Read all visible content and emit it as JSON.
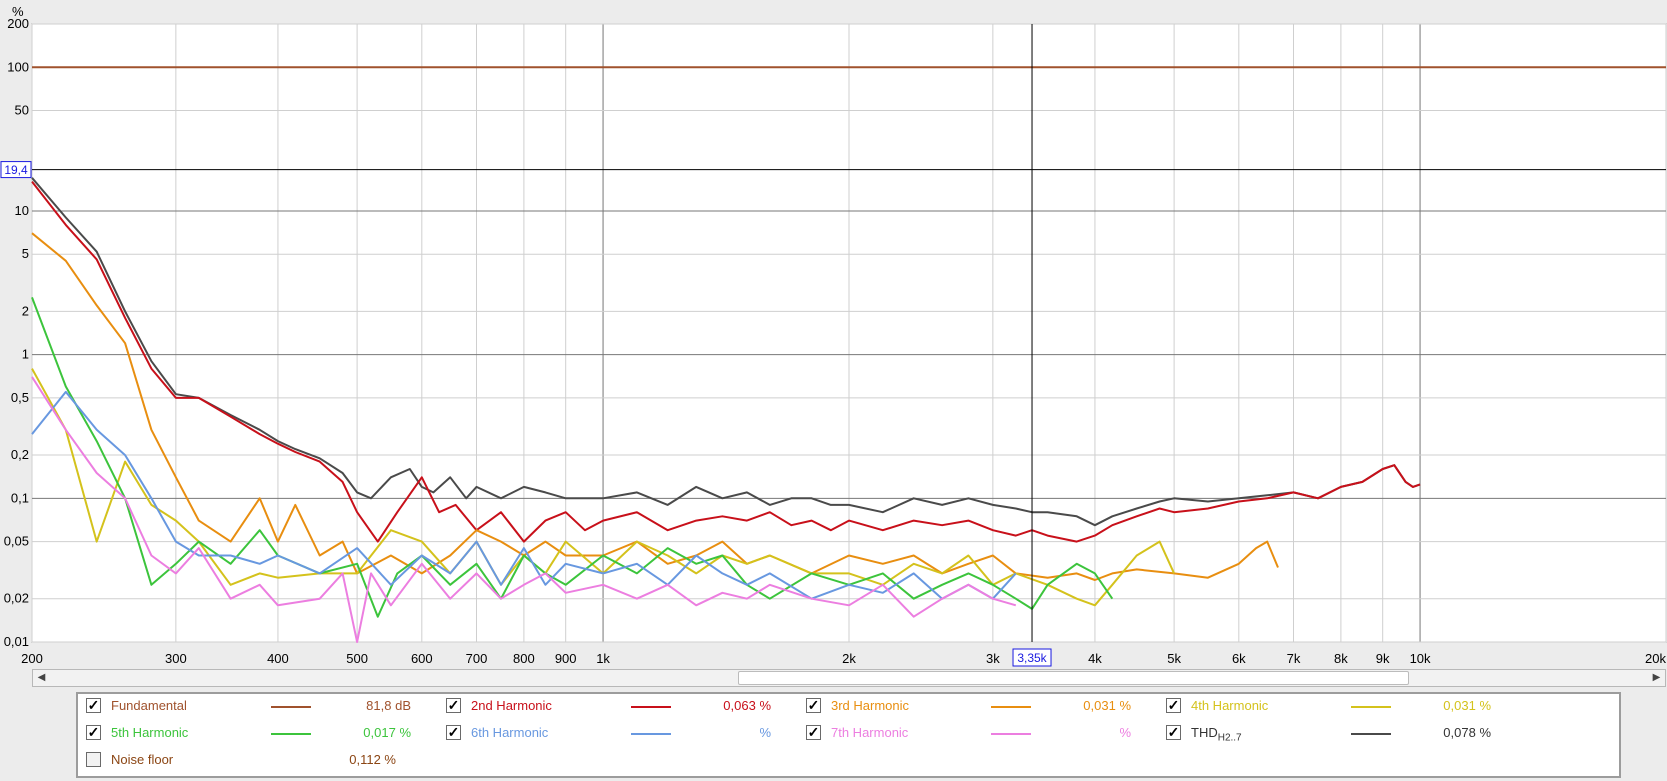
{
  "chart_data": {
    "type": "line",
    "ylabel": "%",
    "x_scale": "log",
    "y_scale": "log",
    "xlim": [
      200,
      20000
    ],
    "ylim": [
      0.01,
      200
    ],
    "x_ticks": [
      {
        "v": 200,
        "t": "200"
      },
      {
        "v": 300,
        "t": "300"
      },
      {
        "v": 400,
        "t": "400"
      },
      {
        "v": 500,
        "t": "500"
      },
      {
        "v": 600,
        "t": "600"
      },
      {
        "v": 700,
        "t": "700"
      },
      {
        "v": 800,
        "t": "800"
      },
      {
        "v": 900,
        "t": "900"
      },
      {
        "v": 1000,
        "t": "1k"
      },
      {
        "v": 2000,
        "t": "2k"
      },
      {
        "v": 3000,
        "t": "3k"
      },
      {
        "v": 4000,
        "t": "4k"
      },
      {
        "v": 5000,
        "t": "5k"
      },
      {
        "v": 6000,
        "t": "6k"
      },
      {
        "v": 7000,
        "t": "7k"
      },
      {
        "v": 8000,
        "t": "8k"
      },
      {
        "v": 9000,
        "t": "9k"
      },
      {
        "v": 10000,
        "t": "10k"
      },
      {
        "v": 20000,
        "t": "20k"
      }
    ],
    "y_ticks": [
      {
        "v": 200,
        "t": "200"
      },
      {
        "v": 100,
        "t": "100"
      },
      {
        "v": 50,
        "t": "50"
      },
      {
        "v": 10,
        "t": "10"
      },
      {
        "v": 5,
        "t": "5"
      },
      {
        "v": 2,
        "t": "2"
      },
      {
        "v": 1,
        "t": "1"
      },
      {
        "v": 0.5,
        "t": "0,5"
      },
      {
        "v": 0.2,
        "t": "0,2"
      },
      {
        "v": 0.1,
        "t": "0,1"
      },
      {
        "v": 0.05,
        "t": "0,05"
      },
      {
        "v": 0.02,
        "t": "0,02"
      },
      {
        "v": 0.01,
        "t": "0,01"
      }
    ],
    "cursor": {
      "x": 3350,
      "x_label": "3,35k",
      "y": 19.4,
      "y_label": "19,4"
    },
    "grid": true,
    "legend_position": "bottom",
    "series": [
      {
        "name": "Fundamental",
        "color": "#a0522d",
        "x": [
          200,
          20000
        ],
        "y": [
          100,
          100
        ]
      },
      {
        "name": "THD",
        "color": "#4a4a4a",
        "x": [
          200,
          220,
          240,
          260,
          280,
          300,
          320,
          350,
          380,
          400,
          420,
          450,
          480,
          500,
          520,
          550,
          580,
          600,
          620,
          650,
          680,
          700,
          750,
          800,
          850,
          900,
          950,
          1000,
          1100,
          1200,
          1300,
          1400,
          1500,
          1600,
          1700,
          1800,
          1900,
          2000,
          2200,
          2400,
          2600,
          2800,
          3000,
          3200,
          3350,
          3500,
          3800,
          4000,
          4200,
          4500,
          4800,
          5000,
          5500,
          6000,
          6500,
          7000,
          7500,
          8000,
          8500,
          9000,
          9300,
          9600,
          9800,
          10000
        ],
        "y": [
          17,
          9,
          5.2,
          2,
          0.9,
          0.53,
          0.5,
          0.38,
          0.3,
          0.25,
          0.22,
          0.19,
          0.15,
          0.11,
          0.1,
          0.14,
          0.16,
          0.12,
          0.11,
          0.14,
          0.1,
          0.12,
          0.1,
          0.12,
          0.11,
          0.1,
          0.1,
          0.1,
          0.11,
          0.09,
          0.12,
          0.1,
          0.11,
          0.09,
          0.1,
          0.1,
          0.09,
          0.09,
          0.08,
          0.1,
          0.09,
          0.1,
          0.09,
          0.085,
          0.08,
          0.08,
          0.075,
          0.065,
          0.075,
          0.085,
          0.095,
          0.1,
          0.095,
          0.1,
          0.105,
          0.11,
          0.1,
          0.12,
          0.13,
          0.16,
          0.17,
          0.13,
          0.12,
          0.125
        ]
      },
      {
        "name": "2nd Harmonic",
        "color": "#c8101a",
        "x": [
          200,
          220,
          240,
          260,
          280,
          300,
          320,
          350,
          380,
          400,
          420,
          450,
          480,
          500,
          530,
          560,
          600,
          630,
          660,
          700,
          750,
          800,
          850,
          900,
          950,
          1000,
          1100,
          1200,
          1300,
          1400,
          1500,
          1600,
          1700,
          1800,
          1900,
          2000,
          2200,
          2400,
          2600,
          2800,
          3000,
          3200,
          3350,
          3500,
          3800,
          4000,
          4200,
          4500,
          4800,
          5000,
          5500,
          6000,
          6500,
          7000,
          7500,
          8000,
          8500,
          9000,
          9300,
          9600,
          9800,
          10000
        ],
        "y": [
          16,
          8,
          4.6,
          1.8,
          0.8,
          0.5,
          0.5,
          0.37,
          0.28,
          0.24,
          0.21,
          0.18,
          0.13,
          0.08,
          0.05,
          0.08,
          0.14,
          0.08,
          0.09,
          0.06,
          0.08,
          0.05,
          0.07,
          0.08,
          0.06,
          0.07,
          0.08,
          0.06,
          0.07,
          0.075,
          0.07,
          0.08,
          0.065,
          0.07,
          0.06,
          0.07,
          0.06,
          0.07,
          0.065,
          0.07,
          0.06,
          0.055,
          0.06,
          0.055,
          0.05,
          0.055,
          0.065,
          0.075,
          0.085,
          0.08,
          0.085,
          0.095,
          0.1,
          0.11,
          0.1,
          0.12,
          0.13,
          0.16,
          0.17,
          0.13,
          0.12,
          0.125
        ]
      },
      {
        "name": "3rd Harmonic",
        "color": "#e88e10",
        "x": [
          200,
          220,
          240,
          260,
          280,
          300,
          320,
          350,
          380,
          400,
          420,
          450,
          480,
          500,
          550,
          600,
          650,
          700,
          750,
          800,
          850,
          900,
          1000,
          1100,
          1200,
          1300,
          1400,
          1500,
          1600,
          1800,
          2000,
          2200,
          2400,
          2600,
          2800,
          3000,
          3200,
          3500,
          3800,
          4000,
          4200,
          4500,
          5000,
          5500,
          6000,
          6300,
          6500,
          6700
        ],
        "y": [
          7,
          4.5,
          2.2,
          1.2,
          0.3,
          0.14,
          0.07,
          0.05,
          0.1,
          0.05,
          0.09,
          0.04,
          0.05,
          0.03,
          0.04,
          0.03,
          0.04,
          0.06,
          0.05,
          0.04,
          0.05,
          0.04,
          0.04,
          0.05,
          0.035,
          0.04,
          0.05,
          0.035,
          0.04,
          0.03,
          0.04,
          0.035,
          0.04,
          0.03,
          0.035,
          0.04,
          0.03,
          0.028,
          0.03,
          0.027,
          0.03,
          0.032,
          0.03,
          0.028,
          0.035,
          0.045,
          0.05,
          0.033
        ]
      },
      {
        "name": "4th Harmonic",
        "color": "#d4c21c",
        "x": [
          200,
          220,
          240,
          260,
          280,
          300,
          320,
          350,
          380,
          400,
          450,
          500,
          550,
          600,
          650,
          700,
          750,
          800,
          850,
          900,
          1000,
          1100,
          1200,
          1300,
          1400,
          1500,
          1600,
          1800,
          2000,
          2200,
          2400,
          2600,
          2800,
          3000,
          3200,
          3500,
          3800,
          4000,
          4200,
          4500,
          4800,
          5000
        ],
        "y": [
          0.8,
          0.3,
          0.05,
          0.18,
          0.09,
          0.07,
          0.05,
          0.025,
          0.03,
          0.028,
          0.03,
          0.03,
          0.06,
          0.05,
          0.03,
          0.05,
          0.025,
          0.04,
          0.03,
          0.05,
          0.03,
          0.05,
          0.04,
          0.03,
          0.04,
          0.035,
          0.04,
          0.03,
          0.03,
          0.025,
          0.035,
          0.03,
          0.04,
          0.025,
          0.03,
          0.025,
          0.02,
          0.018,
          0.025,
          0.04,
          0.05,
          0.03
        ]
      },
      {
        "name": "5th Harmonic",
        "color": "#3cc43c",
        "x": [
          200,
          220,
          240,
          260,
          280,
          300,
          320,
          350,
          380,
          400,
          450,
          500,
          530,
          560,
          600,
          650,
          700,
          750,
          800,
          850,
          900,
          1000,
          1100,
          1200,
          1300,
          1400,
          1500,
          1600,
          1800,
          2000,
          2200,
          2400,
          2600,
          2800,
          3000,
          3200,
          3350,
          3500,
          3800,
          4000,
          4200
        ],
        "y": [
          2.5,
          0.6,
          0.25,
          0.1,
          0.025,
          0.035,
          0.05,
          0.035,
          0.06,
          0.04,
          0.03,
          0.035,
          0.015,
          0.03,
          0.04,
          0.025,
          0.035,
          0.02,
          0.04,
          0.03,
          0.025,
          0.04,
          0.03,
          0.045,
          0.035,
          0.04,
          0.025,
          0.02,
          0.03,
          0.025,
          0.03,
          0.02,
          0.025,
          0.03,
          0.025,
          0.02,
          0.017,
          0.025,
          0.035,
          0.03,
          0.02
        ]
      },
      {
        "name": "6th Harmonic",
        "color": "#6898e0",
        "x": [
          200,
          220,
          240,
          260,
          280,
          300,
          320,
          350,
          380,
          400,
          450,
          500,
          550,
          600,
          650,
          700,
          750,
          800,
          850,
          900,
          1000,
          1100,
          1200,
          1300,
          1400,
          1500,
          1600,
          1800,
          2000,
          2200,
          2400,
          2600,
          2800,
          3000,
          3200
        ],
        "y": [
          0.28,
          0.55,
          0.3,
          0.2,
          0.1,
          0.05,
          0.04,
          0.04,
          0.035,
          0.04,
          0.03,
          0.045,
          0.025,
          0.04,
          0.03,
          0.05,
          0.025,
          0.045,
          0.025,
          0.035,
          0.03,
          0.035,
          0.025,
          0.04,
          0.03,
          0.025,
          0.03,
          0.02,
          0.025,
          0.022,
          0.03,
          0.02,
          0.025,
          0.02,
          0.03
        ]
      },
      {
        "name": "7th Harmonic",
        "color": "#ec7ee0",
        "x": [
          200,
          220,
          240,
          260,
          280,
          300,
          320,
          350,
          380,
          400,
          450,
          480,
          500,
          520,
          550,
          600,
          650,
          700,
          750,
          800,
          850,
          900,
          1000,
          1100,
          1200,
          1300,
          1400,
          1500,
          1600,
          1800,
          2000,
          2200,
          2400,
          2600,
          2800,
          3000,
          3200
        ],
        "y": [
          0.7,
          0.3,
          0.15,
          0.1,
          0.04,
          0.03,
          0.045,
          0.02,
          0.025,
          0.018,
          0.02,
          0.03,
          0.01,
          0.03,
          0.018,
          0.035,
          0.02,
          0.03,
          0.02,
          0.025,
          0.03,
          0.022,
          0.025,
          0.02,
          0.025,
          0.018,
          0.022,
          0.02,
          0.025,
          0.02,
          0.018,
          0.025,
          0.015,
          0.02,
          0.025,
          0.02,
          0.018
        ]
      }
    ]
  },
  "legend": {
    "rows": [
      [
        {
          "name": "Fundamental",
          "checked": true,
          "color": "#a0522d",
          "value": "81,8 dB"
        },
        {
          "name": "2nd Harmonic",
          "checked": true,
          "color": "#c8101a",
          "value": "0,063 %"
        },
        {
          "name": "3rd Harmonic",
          "checked": true,
          "color": "#e88e10",
          "value": "0,031 %"
        },
        {
          "name": "4th Harmonic",
          "checked": true,
          "color": "#d4c21c",
          "value": "0,031 %"
        }
      ],
      [
        {
          "name": "5th Harmonic",
          "checked": true,
          "color": "#3cc43c",
          "value": "0,017 %"
        },
        {
          "name": "6th Harmonic",
          "checked": true,
          "color": "#6898e0",
          "value": "%"
        },
        {
          "name": "7th Harmonic",
          "checked": true,
          "color": "#ec7ee0",
          "value": "%"
        },
        {
          "name": "THD",
          "subscript": "H2..7",
          "checked": true,
          "color": "#4a4a4a",
          "value": "0,078 %"
        }
      ],
      [
        {
          "name": "Noise floor",
          "checked": false,
          "color": "#8b4513",
          "value": "0,112 %"
        }
      ]
    ]
  },
  "scroll": {
    "left_arrow": "◀",
    "right_arrow": "▶",
    "thumb_start": 0.43,
    "thumb_end": 0.85
  }
}
